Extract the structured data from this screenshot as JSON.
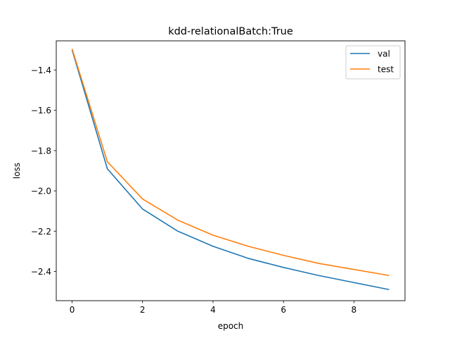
{
  "chart_data": {
    "type": "line",
    "title": "kdd-relationalBatch:True",
    "xlabel": "epoch",
    "ylabel": "loss",
    "xlim": [
      -0.45,
      9.45
    ],
    "ylim": [
      -2.545,
      -1.255
    ],
    "xticks": [
      0,
      2,
      4,
      6,
      8
    ],
    "xtick_labels": [
      "0",
      "2",
      "4",
      "6",
      "8"
    ],
    "yticks": [
      -2.4,
      -2.2,
      -2.0,
      -1.8,
      -1.6,
      -1.4
    ],
    "ytick_labels": [
      "−2.4",
      "−2.2",
      "−2.0",
      "−1.8",
      "−1.6",
      "−1.4"
    ],
    "x": [
      0,
      1,
      2,
      3,
      4,
      5,
      6,
      7,
      8,
      9
    ],
    "series": [
      {
        "name": "val",
        "color": "#1f77b4",
        "values": [
          -1.3,
          -1.89,
          -2.09,
          -2.2,
          -2.275,
          -2.335,
          -2.38,
          -2.42,
          -2.455,
          -2.49
        ]
      },
      {
        "name": "test",
        "color": "#ff7f0e",
        "values": [
          -1.295,
          -1.855,
          -2.04,
          -2.145,
          -2.22,
          -2.275,
          -2.32,
          -2.36,
          -2.39,
          -2.42
        ]
      }
    ],
    "legend_position": "top-right",
    "grid": false
  }
}
